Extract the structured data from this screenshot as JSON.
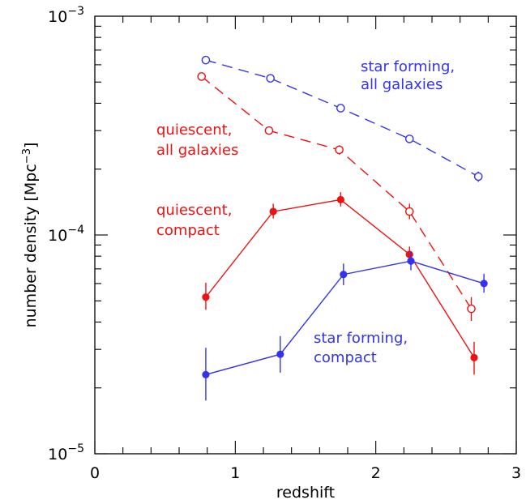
{
  "chart_data": {
    "type": "line",
    "xlabel": "redshift",
    "ylabel_main": "number density",
    "ylabel_unit": "[Mpc",
    "ylabel_unit_exp": "−3",
    "ylabel_unit_close": "]",
    "xlim": [
      0,
      3
    ],
    "ylim": [
      1e-05,
      0.001
    ],
    "yscale": "log",
    "grid": false,
    "x_ticks": [
      {
        "value": 0,
        "label": "0"
      },
      {
        "value": 1,
        "label": "1"
      },
      {
        "value": 2,
        "label": "2"
      },
      {
        "value": 3,
        "label": "3"
      }
    ],
    "y_ticks": [
      {
        "value": 1e-05,
        "base": "10",
        "exp": "−5"
      },
      {
        "value": 0.0001,
        "base": "10",
        "exp": "−4"
      },
      {
        "value": 0.001,
        "base": "10",
        "exp": "−3"
      }
    ],
    "series": [
      {
        "id": "sf-all",
        "color": "#3333ee",
        "dashed": true,
        "marker": "open",
        "points": [
          {
            "x": 0.79,
            "y": 0.00063,
            "lo": 0.000605,
            "hi": 0.000655
          },
          {
            "x": 1.25,
            "y": 0.00052,
            "lo": 0.000501,
            "hi": 0.000539
          },
          {
            "x": 1.75,
            "y": 0.00038,
            "lo": 0.000366,
            "hi": 0.000394
          },
          {
            "x": 2.24,
            "y": 0.000275,
            "lo": 0.000263,
            "hi": 0.000287
          },
          {
            "x": 2.73,
            "y": 0.000185,
            "lo": 0.000175,
            "hi": 0.000195
          }
        ]
      },
      {
        "id": "q-all",
        "color": "#ee1111",
        "dashed": true,
        "marker": "open",
        "points": [
          {
            "x": 0.76,
            "y": 0.00053,
            "lo": 0.000508,
            "hi": 0.000552
          },
          {
            "x": 1.24,
            "y": 0.0003,
            "lo": 0.000288,
            "hi": 0.000313
          },
          {
            "x": 1.74,
            "y": 0.000245,
            "lo": 0.000233,
            "hi": 0.000257
          },
          {
            "x": 2.24,
            "y": 0.000128,
            "lo": 0.000118,
            "hi": 0.000139
          },
          {
            "x": 2.68,
            "y": 4.6e-05,
            "lo": 4.05e-05,
            "hi": 5.2e-05
          }
        ]
      },
      {
        "id": "q-compact",
        "color": "#ee1111",
        "dashed": false,
        "marker": "filled",
        "points": [
          {
            "x": 0.79,
            "y": 5.2e-05,
            "lo": 4.55e-05,
            "hi": 6.05e-05
          },
          {
            "x": 1.27,
            "y": 0.000128,
            "lo": 0.000119,
            "hi": 0.000139
          },
          {
            "x": 1.75,
            "y": 0.000145,
            "lo": 0.000135,
            "hi": 0.000157
          },
          {
            "x": 2.24,
            "y": 8.15e-05,
            "lo": 7.55e-05,
            "hi": 8.85e-05
          },
          {
            "x": 2.7,
            "y": 2.75e-05,
            "lo": 2.3e-05,
            "hi": 3.25e-05
          }
        ]
      },
      {
        "id": "sf-compact",
        "color": "#3333ee",
        "dashed": false,
        "marker": "filled",
        "points": [
          {
            "x": 0.79,
            "y": 2.3e-05,
            "lo": 1.75e-05,
            "hi": 3.05e-05
          },
          {
            "x": 1.32,
            "y": 2.85e-05,
            "lo": 2.35e-05,
            "hi": 3.45e-05
          },
          {
            "x": 1.77,
            "y": 6.6e-05,
            "lo": 5.9e-05,
            "hi": 7.4e-05
          },
          {
            "x": 2.25,
            "y": 7.6e-05,
            "lo": 6.9e-05,
            "hi": 8.4e-05
          },
          {
            "x": 2.77,
            "y": 6e-05,
            "lo": 5.45e-05,
            "hi": 6.65e-05
          }
        ]
      }
    ],
    "annotations": [
      {
        "id": "annot-sf-all",
        "color": "#3333ee",
        "lines": [
          "star forming,",
          "all galaxies"
        ]
      },
      {
        "id": "annot-q-all",
        "color": "#ee1111",
        "lines": [
          "quiescent,",
          "all galaxies"
        ]
      },
      {
        "id": "annot-q-compact",
        "color": "#ee1111",
        "lines": [
          "quiescent,",
          "compact"
        ]
      },
      {
        "id": "annot-sf-compact",
        "color": "#3333ee",
        "lines": [
          "star forming,",
          "compact"
        ]
      }
    ]
  }
}
